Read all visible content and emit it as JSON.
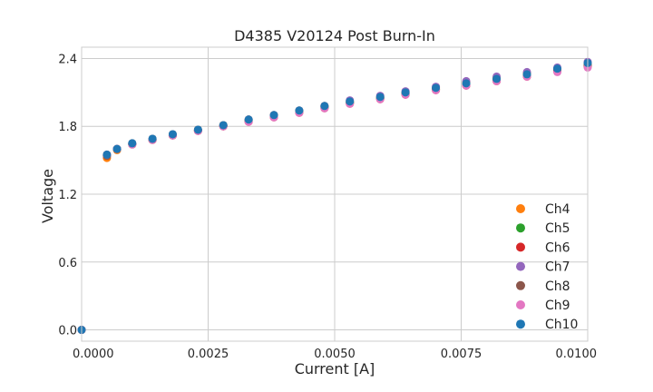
{
  "chart_data": {
    "type": "scatter",
    "title": "D4385 V20124 Post Burn-In",
    "xlabel": "Current [A]",
    "ylabel": "Voltage",
    "xlim": [
      0,
      0.01
    ],
    "ylim": [
      -0.1,
      2.5
    ],
    "xticks": [
      0,
      0.0025,
      0.005,
      0.0075,
      0.01
    ],
    "xtick_labels": [
      "0.0000",
      "0.0025",
      "0.0050",
      "0.0075",
      "0.0100"
    ],
    "yticks": [
      0,
      0.6,
      1.2,
      1.8,
      2.4
    ],
    "ytick_labels": [
      "0.0",
      "0.6",
      "1.2",
      "1.8",
      "2.4"
    ],
    "grid": true,
    "legend_position": "bottom-right",
    "x": [
      0.0,
      0.0005,
      0.0007,
      0.001,
      0.0014,
      0.0018,
      0.0023,
      0.0028,
      0.0033,
      0.0038,
      0.0043,
      0.0048,
      0.0053,
      0.0059,
      0.0064,
      0.007,
      0.0076,
      0.0082,
      0.0088,
      0.0094,
      0.01
    ],
    "series": [
      {
        "name": "Ch4",
        "color": "#ff7f0e",
        "values": [
          0.0,
          1.52,
          1.59,
          1.64,
          1.68,
          1.72,
          1.77,
          1.81,
          1.86,
          1.9,
          1.94,
          1.98,
          2.02,
          2.06,
          2.1,
          2.14,
          2.19,
          2.23,
          2.27,
          2.31,
          2.35
        ]
      },
      {
        "name": "Ch5",
        "color": "#2ca02c",
        "values": [
          0.0,
          1.55,
          1.6,
          1.65,
          1.69,
          1.73,
          1.77,
          1.81,
          1.85,
          1.89,
          1.93,
          1.97,
          2.01,
          2.05,
          2.09,
          2.13,
          2.18,
          2.22,
          2.26,
          2.3,
          2.34
        ]
      },
      {
        "name": "Ch6",
        "color": "#d62728",
        "values": [
          0.0,
          1.54,
          1.6,
          1.64,
          1.68,
          1.72,
          1.76,
          1.8,
          1.84,
          1.88,
          1.92,
          1.96,
          2.0,
          2.04,
          2.08,
          2.12,
          2.16,
          2.2,
          2.24,
          2.29,
          2.33
        ]
      },
      {
        "name": "Ch7",
        "color": "#9467bd",
        "values": [
          0.0,
          1.55,
          1.6,
          1.65,
          1.69,
          1.73,
          1.77,
          1.81,
          1.86,
          1.9,
          1.94,
          1.98,
          2.03,
          2.07,
          2.11,
          2.15,
          2.2,
          2.24,
          2.28,
          2.32,
          2.37
        ]
      },
      {
        "name": "Ch8",
        "color": "#8c564b",
        "values": [
          0.0,
          1.54,
          1.6,
          1.64,
          1.68,
          1.72,
          1.76,
          1.8,
          1.85,
          1.89,
          1.93,
          1.97,
          2.01,
          2.05,
          2.09,
          2.13,
          2.17,
          2.21,
          2.25,
          2.3,
          2.34
        ]
      },
      {
        "name": "Ch9",
        "color": "#e377c2",
        "values": [
          0.0,
          1.55,
          1.6,
          1.64,
          1.68,
          1.72,
          1.76,
          1.8,
          1.84,
          1.88,
          1.92,
          1.96,
          2.0,
          2.04,
          2.08,
          2.12,
          2.16,
          2.2,
          2.24,
          2.28,
          2.32
        ]
      },
      {
        "name": "Ch10",
        "color": "#1f77b4",
        "values": [
          0.0,
          1.55,
          1.6,
          1.65,
          1.69,
          1.73,
          1.77,
          1.81,
          1.86,
          1.9,
          1.94,
          1.98,
          2.02,
          2.06,
          2.1,
          2.14,
          2.18,
          2.22,
          2.26,
          2.31,
          2.36
        ]
      }
    ]
  }
}
